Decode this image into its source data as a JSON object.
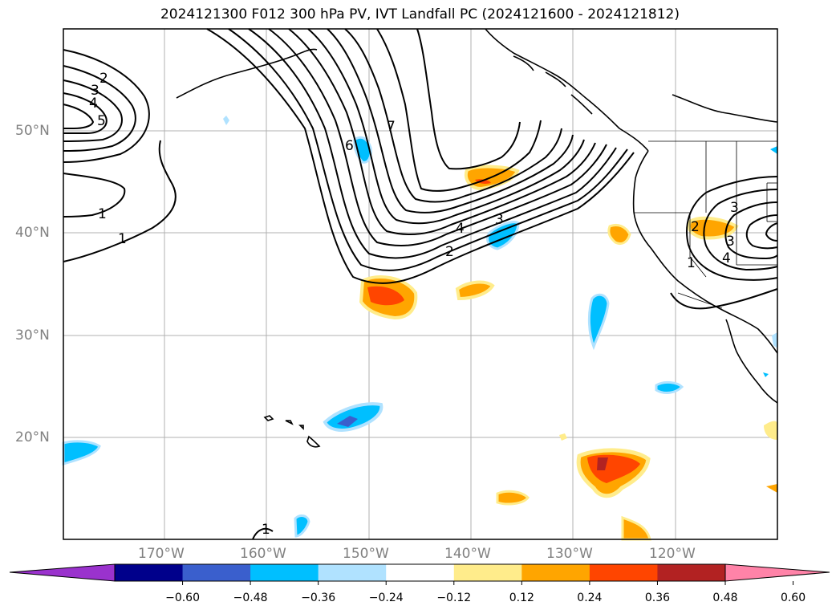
{
  "title": "2024121300 F012 300 hPa PV, IVT Landfall PC (2024121600 - 2024121812)",
  "lat_labels": [
    "50°N",
    "40°N",
    "30°N",
    "20°N"
  ],
  "lon_labels": [
    "170°W",
    "160°W",
    "150°W",
    "140°W",
    "130°W",
    "120°W"
  ],
  "contour_labels": [
    "2",
    "3",
    "4",
    "5",
    "1",
    "1",
    "6",
    "7",
    "3",
    "4",
    "2",
    "3",
    "2",
    "3",
    "4",
    "1",
    "1"
  ],
  "colorbar": {
    "ticks": [
      "−0.60",
      "−0.48",
      "−0.36",
      "−0.24",
      "−0.12",
      "0.12",
      "0.24",
      "0.36",
      "0.48",
      "0.60"
    ],
    "colors": [
      "#9a32cd",
      "#00008b",
      "#3a5fcd",
      "#00bfff",
      "#b0e2ff",
      "#ffffff",
      "#ffec8b",
      "#ffa500",
      "#ff4500",
      "#b22222",
      "#ff83a8"
    ],
    "ticks_numeric": [
      -0.6,
      -0.48,
      -0.36,
      -0.24,
      -0.12,
      0.12,
      0.24,
      0.36,
      0.48,
      0.6
    ]
  }
}
